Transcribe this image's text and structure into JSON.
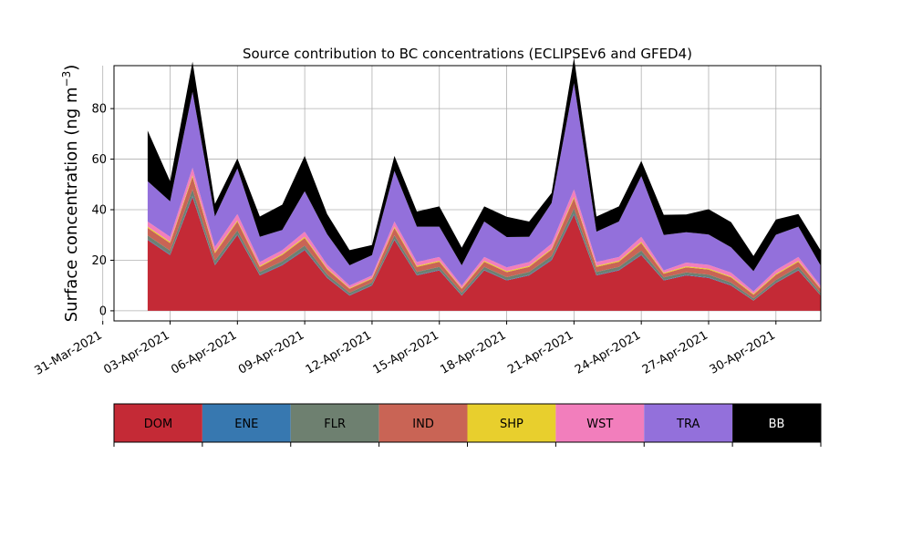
{
  "chart_data": {
    "type": "area",
    "stacked": true,
    "title": "Source contribution to BC concentrations (ECLIPSEv6 and GFED4)",
    "xlabel": "",
    "ylabel": "Surface concentration (ng m",
    "ylabel_unit_sup": "−3",
    "ylabel_close": ")",
    "ylim": [
      -4,
      97
    ],
    "xlim": [
      "2021-03-31T12:00",
      "2021-05-02T00:00"
    ],
    "yticks": [
      0,
      20,
      40,
      60,
      80
    ],
    "xticks": [
      "31-Mar-2021",
      "03-Apr-2021",
      "06-Apr-2021",
      "09-Apr-2021",
      "12-Apr-2021",
      "15-Apr-2021",
      "18-Apr-2021",
      "21-Apr-2021",
      "24-Apr-2021",
      "27-Apr-2021",
      "30-Apr-2021"
    ],
    "grid": true,
    "x": [
      "2021-04-02",
      "2021-04-03",
      "2021-04-04",
      "2021-04-05",
      "2021-04-06",
      "2021-04-07",
      "2021-04-08",
      "2021-04-09",
      "2021-04-10",
      "2021-04-11",
      "2021-04-12",
      "2021-04-13",
      "2021-04-14",
      "2021-04-15",
      "2021-04-16",
      "2021-04-17",
      "2021-04-18",
      "2021-04-19",
      "2021-04-20",
      "2021-04-21",
      "2021-04-22",
      "2021-04-23",
      "2021-04-24",
      "2021-04-25",
      "2021-04-26",
      "2021-04-27",
      "2021-04-28",
      "2021-04-29",
      "2021-04-30",
      "2021-05-01",
      "2021-05-02"
    ],
    "x_start_tick": "2021-04-01",
    "x_end_tick": "2021-05-01",
    "series": [
      {
        "name": "DOM",
        "color": "#c42a36",
        "values": [
          28,
          22,
          45,
          18,
          30,
          14,
          18,
          24,
          13,
          6,
          10,
          28,
          14,
          16,
          6,
          16,
          12,
          14,
          20,
          38,
          14,
          16,
          22,
          12,
          14,
          13,
          10,
          4,
          11,
          16,
          6
        ]
      },
      {
        "name": "ENE",
        "color": "#3778b0",
        "values": [
          0.3,
          0.3,
          0.5,
          0.3,
          0.3,
          0.2,
          0.3,
          0.3,
          0.2,
          0.2,
          0.2,
          0.3,
          0.2,
          0.2,
          0.2,
          0.2,
          0.2,
          0.2,
          0.3,
          0.5,
          0.2,
          0.2,
          0.3,
          0.2,
          0.2,
          0.2,
          0.2,
          0.1,
          0.2,
          0.2,
          0.1
        ]
      },
      {
        "name": "FLR",
        "color": "#6e8070",
        "values": [
          1.5,
          1.5,
          2.5,
          1.5,
          1.5,
          1.2,
          1.3,
          1.5,
          1.2,
          1,
          1,
          1.5,
          1.2,
          1.2,
          1,
          1.2,
          1.1,
          1.2,
          1.4,
          2,
          1.2,
          1.2,
          1.5,
          1,
          1,
          1.1,
          1,
          0.8,
          1,
          1.2,
          0.9
        ]
      },
      {
        "name": "IND",
        "color": "#c96455",
        "values": [
          3,
          3,
          5,
          3,
          3.5,
          2,
          2.5,
          3,
          2,
          1.5,
          1.5,
          3,
          2,
          2,
          1.5,
          2,
          2,
          2,
          2.5,
          4,
          2,
          2,
          3,
          1.5,
          2,
          2,
          2,
          1.5,
          2,
          2,
          1.5
        ]
      },
      {
        "name": "SHP",
        "color": "#e8cf2d",
        "values": [
          0.5,
          0.5,
          0.6,
          0.5,
          0.5,
          0.4,
          0.4,
          0.5,
          0.4,
          0.3,
          0.3,
          0.5,
          0.4,
          0.4,
          0.3,
          0.4,
          0.4,
          0.4,
          0.4,
          0.6,
          0.4,
          0.4,
          0.5,
          0.3,
          0.4,
          0.4,
          0.4,
          0.3,
          0.4,
          0.4,
          0.3
        ]
      },
      {
        "name": "WST",
        "color": "#f27ebc",
        "values": [
          2,
          2,
          3,
          2,
          2.5,
          1.5,
          1.5,
          2,
          1.5,
          1,
          1,
          2,
          1.5,
          1.5,
          1,
          1.5,
          1.5,
          1.5,
          2,
          3,
          1.5,
          1.5,
          2,
          1,
          1.5,
          1.5,
          1.5,
          1,
          1.5,
          1.5,
          1
        ]
      },
      {
        "name": "TRA",
        "color": "#9370db",
        "values": [
          16,
          14,
          30,
          12,
          18,
          10,
          8,
          16,
          12,
          8,
          8,
          20,
          14,
          12,
          8,
          14,
          12,
          10,
          16,
          42,
          12,
          14,
          24,
          14,
          12,
          12,
          10,
          8,
          14,
          12,
          8
        ]
      },
      {
        "name": "BB",
        "color": "#000000",
        "values": [
          20,
          8,
          12,
          5,
          4,
          8,
          10,
          14,
          8,
          6,
          4,
          6,
          6,
          8,
          7,
          6,
          8,
          6,
          4,
          10,
          6,
          6,
          6,
          8,
          7,
          10,
          10,
          6,
          6,
          5,
          6
        ]
      }
    ],
    "legend": {
      "placement": "below",
      "entries": [
        "DOM",
        "ENE",
        "FLR",
        "IND",
        "SHP",
        "WST",
        "TRA",
        "BB"
      ]
    }
  }
}
